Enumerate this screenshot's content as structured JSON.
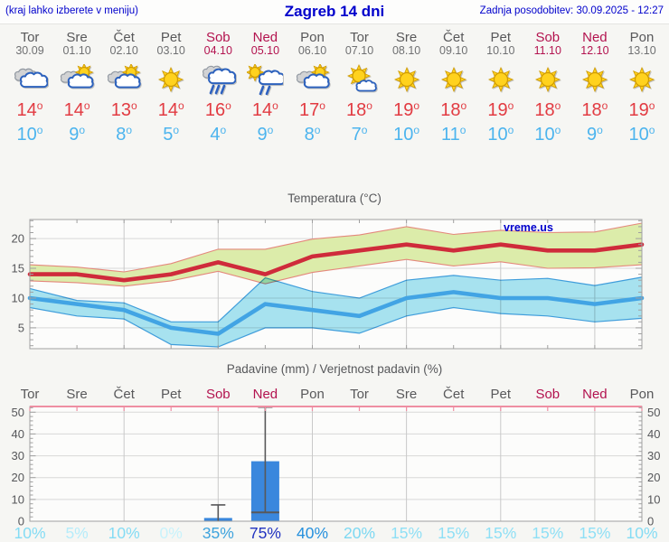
{
  "header": {
    "left_note": "(kraj lahko izberete v meniju)",
    "title": "Zagreb 14 dni",
    "updated": "Zadnja posodobitev: 30.09.2025 - 12:27"
  },
  "colors": {
    "header_blue": "#0000cc",
    "weekday_gray": "#58585a",
    "weekend_red": "#b3134f",
    "max_temp_red": "#e23b42",
    "min_temp_blue": "#4cb4ee",
    "chart_frame": "#a0a0a0",
    "pink_axis": "#ee8ea2",
    "bar_blue": "#3a87dd"
  },
  "days": [
    {
      "name": "Tor",
      "date": "30.09",
      "icon": "cloudy",
      "temp_max": 14,
      "temp_min": 10,
      "weekend": false
    },
    {
      "name": "Sre",
      "date": "01.10",
      "icon": "partly-cloudy",
      "temp_max": 14,
      "temp_min": 9,
      "weekend": false
    },
    {
      "name": "Čet",
      "date": "02.10",
      "icon": "partly-cloudy",
      "temp_max": 13,
      "temp_min": 8,
      "weekend": false
    },
    {
      "name": "Pet",
      "date": "03.10",
      "icon": "sunny",
      "temp_max": 14,
      "temp_min": 5,
      "weekend": false
    },
    {
      "name": "Sob",
      "date": "04.10",
      "icon": "rain",
      "temp_max": 16,
      "temp_min": 4,
      "weekend": true
    },
    {
      "name": "Ned",
      "date": "05.10",
      "icon": "sun-rain",
      "temp_max": 14,
      "temp_min": 9,
      "weekend": true
    },
    {
      "name": "Pon",
      "date": "06.10",
      "icon": "partly-cloudy",
      "temp_max": 17,
      "temp_min": 8,
      "weekend": false
    },
    {
      "name": "Tor",
      "date": "07.10",
      "icon": "sun-small-cloud",
      "temp_max": 18,
      "temp_min": 7,
      "weekend": false
    },
    {
      "name": "Sre",
      "date": "08.10",
      "icon": "sunny",
      "temp_max": 19,
      "temp_min": 10,
      "weekend": false
    },
    {
      "name": "Čet",
      "date": "09.10",
      "icon": "sunny",
      "temp_max": 18,
      "temp_min": 11,
      "weekend": false
    },
    {
      "name": "Pet",
      "date": "10.10",
      "icon": "sunny",
      "temp_max": 19,
      "temp_min": 10,
      "weekend": false
    },
    {
      "name": "Sob",
      "date": "11.10",
      "icon": "sunny",
      "temp_max": 18,
      "temp_min": 10,
      "weekend": true
    },
    {
      "name": "Ned",
      "date": "12.10",
      "icon": "sunny",
      "temp_max": 18,
      "temp_min": 9,
      "weekend": true
    },
    {
      "name": "Pon",
      "date": "13.10",
      "icon": "sunny",
      "temp_max": 19,
      "temp_min": 10,
      "weekend": false
    }
  ],
  "chart_data": [
    {
      "type": "line",
      "title": "Temperatura (°C)",
      "watermark": "vreme.us",
      "x_labels": [
        "Tor",
        "Sre",
        "Čet",
        "Pet",
        "Sob",
        "Ned",
        "Pon",
        "Tor",
        "Sre",
        "Čet",
        "Pet",
        "Sob",
        "Ned",
        "Pon"
      ],
      "ylim": [
        1.5,
        23.2
      ],
      "yticks": [
        5,
        10,
        15,
        20
      ],
      "grid_days": [
        3,
        5,
        7,
        9,
        11,
        13
      ],
      "series": [
        {
          "name": "max-temp",
          "color": "#cf2b3b",
          "values": [
            14,
            14,
            13,
            14,
            16,
            14,
            17,
            18,
            19,
            18,
            19,
            18,
            18,
            19
          ]
        },
        {
          "name": "max-temp-range",
          "fill": "#dcecaa",
          "edge": "#e4887c",
          "upper": [
            15.6,
            15.2,
            14.4,
            15.8,
            18.2,
            18.2,
            19.9,
            20.6,
            22.0,
            20.7,
            21.4,
            21.0,
            21.1,
            22.6
          ],
          "lower": [
            12.9,
            12.6,
            12.0,
            12.9,
            14.5,
            12.4,
            14.3,
            15.4,
            16.5,
            15.4,
            16.1,
            15.0,
            15.1,
            15.6
          ]
        },
        {
          "name": "min-temp",
          "color": "#42a4e4",
          "values": [
            10,
            9,
            8,
            5,
            4,
            9,
            8,
            7,
            10,
            11,
            10,
            10,
            9,
            10
          ]
        },
        {
          "name": "min-temp-range",
          "fill": "#a9e5f3",
          "edge": "#3f9fdf",
          "upper": [
            11.6,
            9.6,
            9.2,
            6.0,
            6.0,
            13.4,
            11.1,
            10.0,
            13.0,
            13.8,
            13.0,
            13.3,
            12.1,
            13.5
          ],
          "lower": [
            8.4,
            7.0,
            6.5,
            2.2,
            1.8,
            5.0,
            5.0,
            4.1,
            7.0,
            8.4,
            7.4,
            7.0,
            6.0,
            6.6
          ]
        }
      ]
    },
    {
      "type": "bar",
      "title": "Padavine (mm) / Verjetnost padavin (%)",
      "day_labels": [
        "Tor",
        "Sre",
        "Čet",
        "Pet",
        "Sob",
        "Ned",
        "Pon",
        "Tor",
        "Sre",
        "Čet",
        "Pet",
        "Sob",
        "Ned",
        "Pon"
      ],
      "weekend_indices": [
        4,
        5,
        11,
        12
      ],
      "ylim": [
        0,
        52.6
      ],
      "yticks": [
        0,
        10,
        20,
        30,
        40,
        50
      ],
      "grid_days": [
        3,
        5,
        7,
        9,
        11,
        13
      ],
      "bar_color": "#3a87dd",
      "values": [
        0,
        0,
        0,
        0,
        1.5,
        27.5,
        0,
        0,
        0,
        0,
        0,
        0,
        0,
        0
      ],
      "bars": [
        {
          "index": 4,
          "label": "Sob",
          "value": 1.5,
          "whisker_low": 0,
          "whisker_high": 7.5,
          "cross_value": null
        },
        {
          "index": 5,
          "label": "Ned",
          "value": 27.5,
          "whisker_low": 4,
          "whisker_high": 52.3,
          "cross_value": 4
        }
      ],
      "probabilities": [
        {
          "value": "10%",
          "color": "#84dcf4"
        },
        {
          "value": "5%",
          "color": "#b6ecfa"
        },
        {
          "value": "10%",
          "color": "#84dcf4"
        },
        {
          "value": "0%",
          "color": "#c8f2fb"
        },
        {
          "value": "35%",
          "color": "#3ea3dd"
        },
        {
          "value": "75%",
          "color": "#2133c0"
        },
        {
          "value": "40%",
          "color": "#2590dd"
        },
        {
          "value": "20%",
          "color": "#7cd8f2"
        },
        {
          "value": "15%",
          "color": "#8edff5"
        },
        {
          "value": "15%",
          "color": "#8edff5"
        },
        {
          "value": "15%",
          "color": "#8edff5"
        },
        {
          "value": "15%",
          "color": "#8edff5"
        },
        {
          "value": "15%",
          "color": "#8edff5"
        },
        {
          "value": "10%",
          "color": "#84dcf4"
        }
      ]
    }
  ]
}
